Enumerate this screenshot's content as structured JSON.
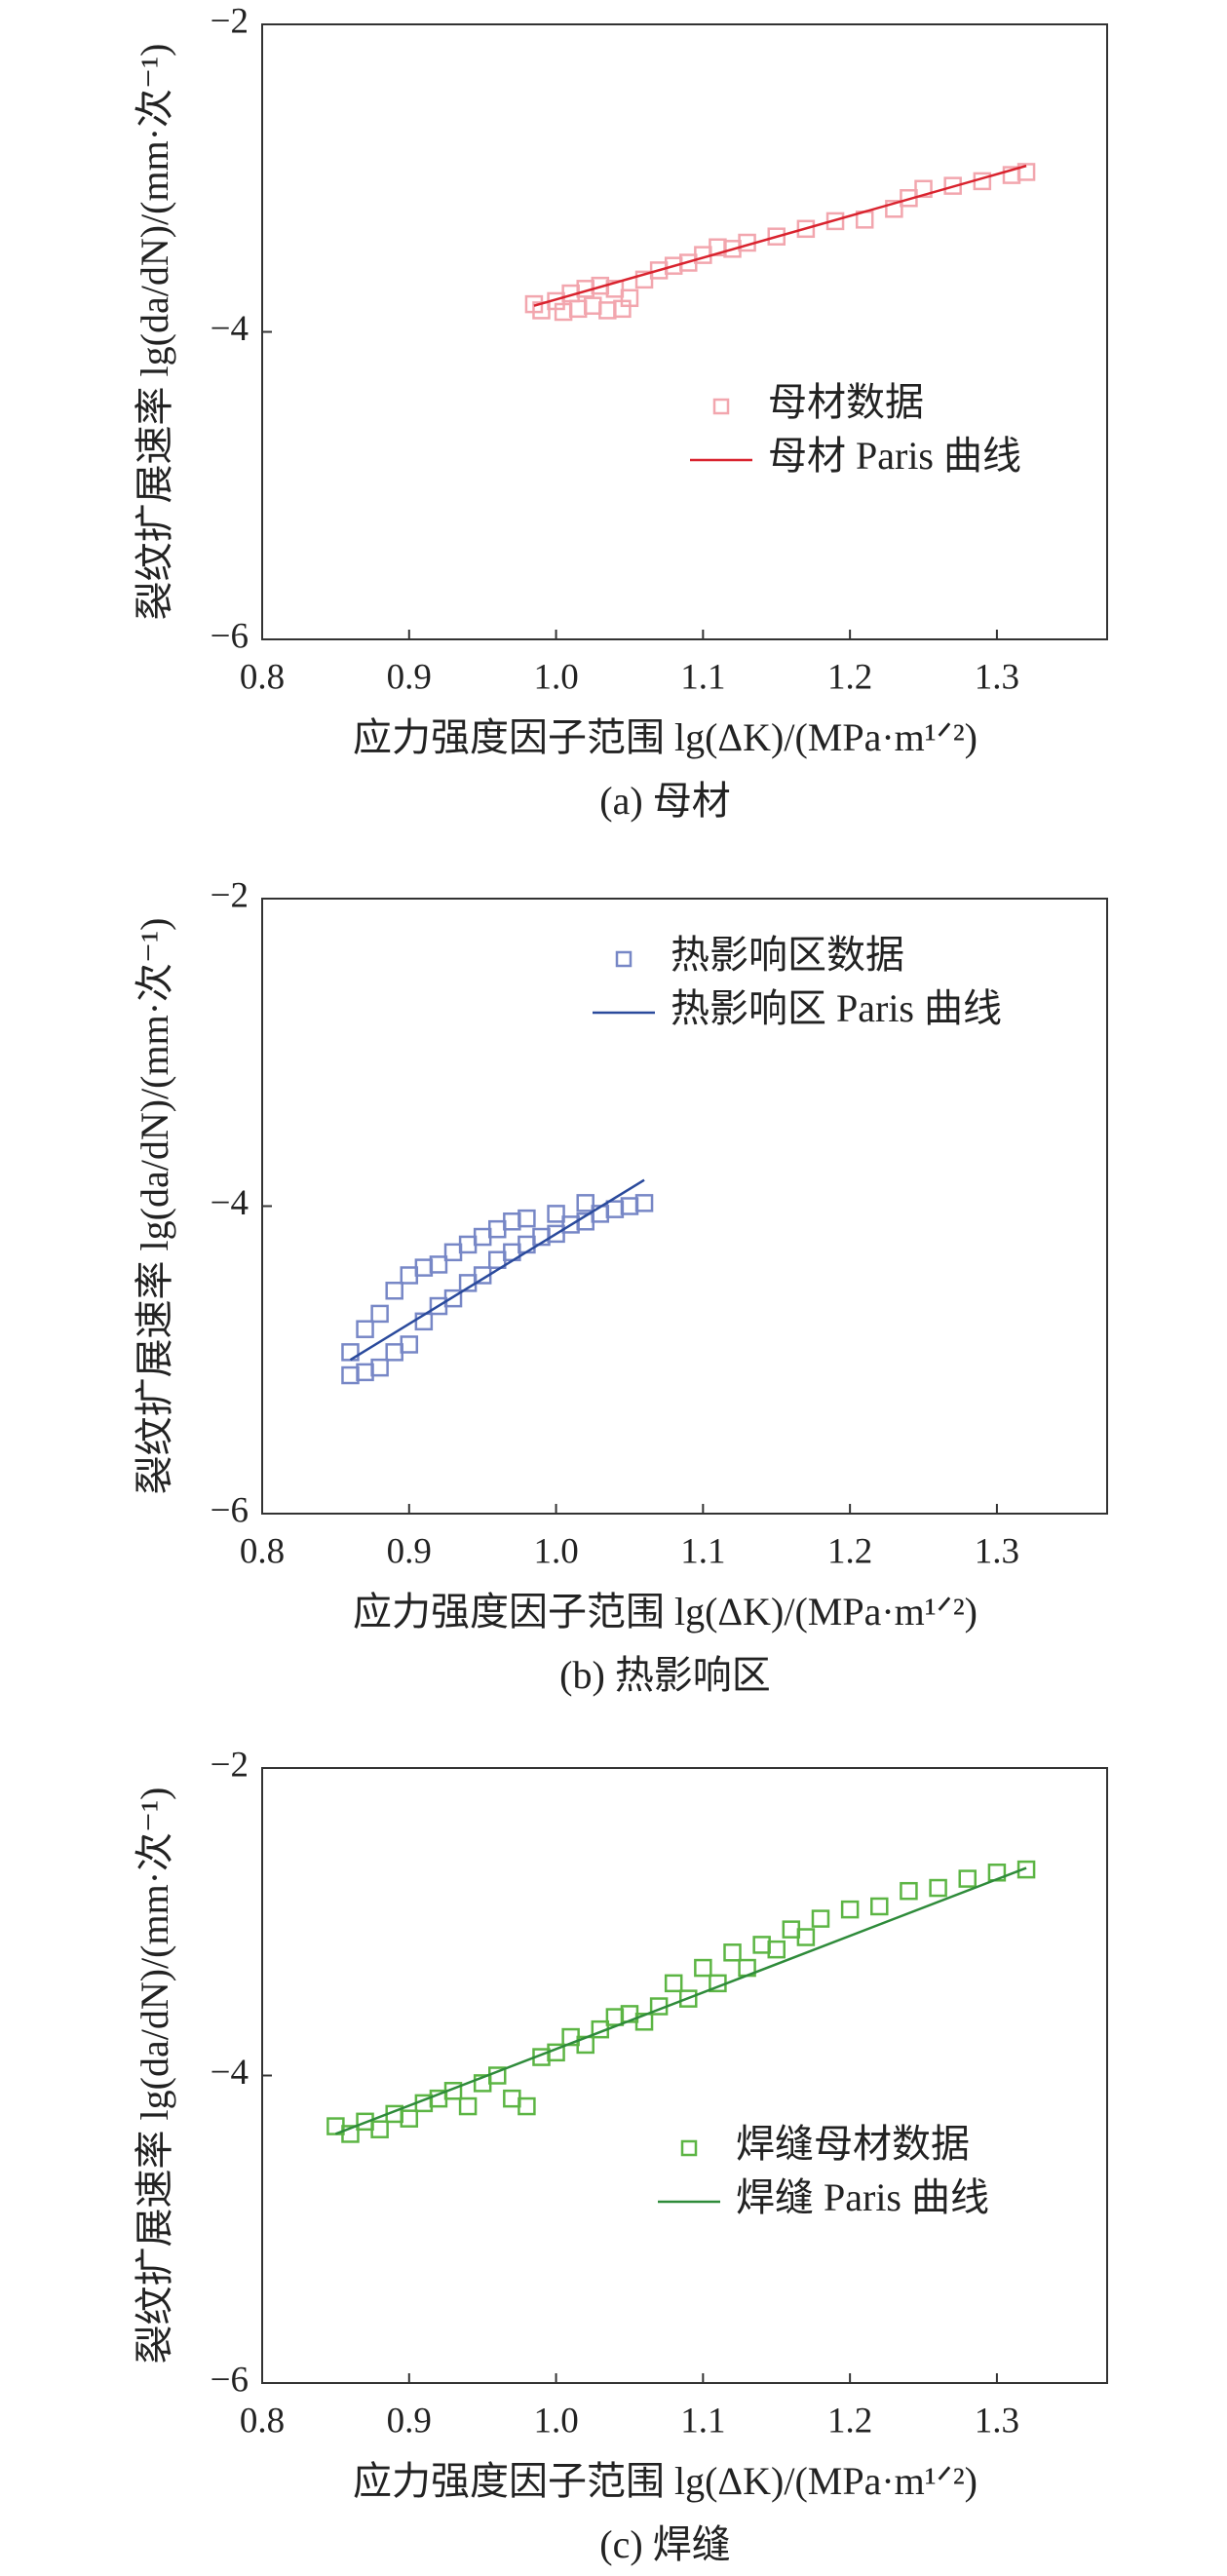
{
  "chart_data": [
    {
      "type": "scatter",
      "caption": "(a) 母材",
      "xlabel": "应力强度因子范围 lg(ΔK)/(MPa·m¹ᐟ²)",
      "ylabel": "裂纹扩展速率 lg(da/dN)/(mm·次⁻¹)",
      "xlim": [
        0.8,
        1.375
      ],
      "ylim": [
        -6,
        -2
      ],
      "xticks": [
        0.8,
        0.9,
        {
          "value": 1.0,
          "label": "1.0"
        },
        1.1,
        1.2,
        1.3
      ],
      "yticks": [
        {
          "value": -6,
          "label": "−6"
        },
        {
          "value": -4,
          "label": "−4"
        },
        {
          "value": -2,
          "label": "−2"
        }
      ],
      "legend": "center right",
      "series": [
        {
          "name": "母材数据",
          "color": "#f2a6ae",
          "marker": "square",
          "x": [
            0.985,
            0.99,
            1.0,
            1.005,
            1.01,
            1.015,
            1.02,
            1.025,
            1.03,
            1.035,
            1.04,
            1.045,
            1.05,
            1.06,
            1.07,
            1.08,
            1.09,
            1.1,
            1.11,
            1.12,
            1.13,
            1.15,
            1.17,
            1.19,
            1.21,
            1.23,
            1.24,
            1.25,
            1.27,
            1.29,
            1.31,
            1.32
          ],
          "y": [
            -3.82,
            -3.86,
            -3.8,
            -3.87,
            -3.75,
            -3.85,
            -3.72,
            -3.83,
            -3.7,
            -3.86,
            -3.72,
            -3.85,
            -3.78,
            -3.66,
            -3.6,
            -3.57,
            -3.55,
            -3.5,
            -3.45,
            -3.46,
            -3.42,
            -3.38,
            -3.33,
            -3.28,
            -3.27,
            -3.2,
            -3.13,
            -3.07,
            -3.05,
            -3.02,
            -2.98,
            -2.96
          ]
        },
        {
          "name": "母材 Paris 曲线",
          "color": "#d9232e",
          "marker": "line",
          "x": [
            0.985,
            1.32
          ],
          "y": [
            -3.83,
            -2.92
          ]
        }
      ]
    },
    {
      "type": "scatter",
      "caption": "(b) 热影响区",
      "xlabel": "应力强度因子范围 lg(ΔK)/(MPa·m¹ᐟ²)",
      "ylabel": "裂纹扩展速率 lg(da/dN)/(mm·次⁻¹)",
      "xlim": [
        0.8,
        1.375
      ],
      "ylim": [
        -6,
        -2
      ],
      "xticks": [
        0.8,
        0.9,
        {
          "value": 1.0,
          "label": "1.0"
        },
        1.1,
        1.2,
        1.3
      ],
      "yticks": [
        {
          "value": -6,
          "label": "−6"
        },
        {
          "value": -4,
          "label": "−4"
        },
        {
          "value": -2,
          "label": "−2"
        }
      ],
      "legend": "upper center",
      "series": [
        {
          "name": "热影响区数据",
          "color": "#7787c6",
          "marker": "square",
          "x": [
            0.86,
            0.86,
            0.87,
            0.87,
            0.88,
            0.88,
            0.89,
            0.89,
            0.9,
            0.9,
            0.91,
            0.91,
            0.92,
            0.92,
            0.93,
            0.93,
            0.94,
            0.94,
            0.95,
            0.95,
            0.96,
            0.96,
            0.97,
            0.97,
            0.98,
            0.98,
            0.99,
            1.0,
            1.0,
            1.01,
            1.02,
            1.02,
            1.03,
            1.04,
            1.05,
            1.06
          ],
          "y": [
            -5.1,
            -4.95,
            -5.08,
            -4.8,
            -5.05,
            -4.7,
            -4.95,
            -4.55,
            -4.9,
            -4.45,
            -4.75,
            -4.4,
            -4.65,
            -4.38,
            -4.6,
            -4.3,
            -4.5,
            -4.25,
            -4.45,
            -4.2,
            -4.35,
            -4.15,
            -4.3,
            -4.1,
            -4.25,
            -4.08,
            -4.2,
            -4.18,
            -4.05,
            -4.12,
            -4.1,
            -3.98,
            -4.05,
            -4.02,
            -4.0,
            -3.98
          ]
        },
        {
          "name": "热影响区 Paris 曲线",
          "color": "#2a4a9c",
          "marker": "line",
          "x": [
            0.86,
            1.06
          ],
          "y": [
            -5.0,
            -3.83
          ]
        }
      ]
    },
    {
      "type": "scatter",
      "caption": "(c) 焊缝",
      "xlabel": "应力强度因子范围 lg(ΔK)/(MPa·m¹ᐟ²)",
      "ylabel": "裂纹扩展速率 lg(da/dN)/(mm·次⁻¹)",
      "xlim": [
        0.8,
        1.375
      ],
      "ylim": [
        -6,
        -2
      ],
      "xticks": [
        0.8,
        0.9,
        {
          "value": 1.0,
          "label": "1.0"
        },
        1.1,
        1.2,
        1.3
      ],
      "yticks": [
        {
          "value": -6,
          "label": "−6"
        },
        {
          "value": -4,
          "label": "−4"
        },
        {
          "value": -2,
          "label": "−2"
        }
      ],
      "legend": "lower right",
      "series": [
        {
          "name": "焊缝母材数据",
          "color": "#5cb544",
          "marker": "square",
          "x": [
            0.85,
            0.86,
            0.87,
            0.88,
            0.89,
            0.9,
            0.91,
            0.92,
            0.93,
            0.94,
            0.95,
            0.96,
            0.97,
            0.98,
            0.99,
            1.0,
            1.01,
            1.02,
            1.03,
            1.04,
            1.05,
            1.06,
            1.07,
            1.08,
            1.09,
            1.1,
            1.11,
            1.12,
            1.13,
            1.14,
            1.15,
            1.16,
            1.17,
            1.18,
            1.2,
            1.22,
            1.24,
            1.26,
            1.28,
            1.3,
            1.32
          ],
          "y": [
            -4.33,
            -4.38,
            -4.3,
            -4.35,
            -4.25,
            -4.28,
            -4.18,
            -4.15,
            -4.1,
            -4.2,
            -4.05,
            -4.0,
            -4.15,
            -4.2,
            -3.88,
            -3.85,
            -3.75,
            -3.8,
            -3.7,
            -3.62,
            -3.6,
            -3.65,
            -3.55,
            -3.4,
            -3.5,
            -3.3,
            -3.4,
            -3.2,
            -3.3,
            -3.15,
            -3.18,
            -3.05,
            -3.1,
            -2.98,
            -2.92,
            -2.9,
            -2.8,
            -2.78,
            -2.72,
            -2.68,
            -2.66
          ]
        },
        {
          "name": "焊缝 Paris 曲线",
          "color": "#2e8b3a",
          "marker": "line",
          "x": [
            0.85,
            1.32
          ],
          "y": [
            -4.38,
            -2.65
          ]
        }
      ]
    }
  ]
}
